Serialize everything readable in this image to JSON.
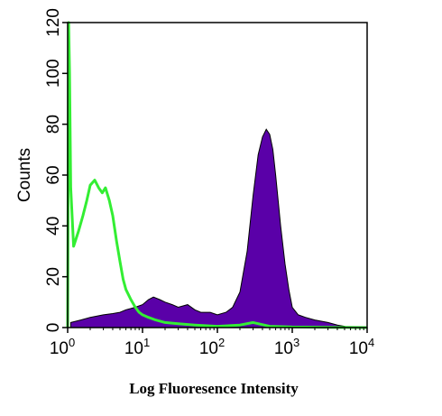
{
  "chart_data": {
    "type": "area",
    "title": "",
    "xlabel": "Log Fluoresence Intensity",
    "ylabel": "Counts",
    "xscale": "log",
    "xlim": [
      1,
      10000
    ],
    "ylim": [
      0,
      120
    ],
    "grid": false,
    "legend": "none",
    "xticks": [
      {
        "base": "10",
        "exp": "0",
        "value": 1
      },
      {
        "base": "10",
        "exp": "1",
        "value": 10
      },
      {
        "base": "10",
        "exp": "2",
        "value": 100
      },
      {
        "base": "10",
        "exp": "3",
        "value": 1000
      },
      {
        "base": "10",
        "exp": "4",
        "value": 10000
      }
    ],
    "yticks": [
      "0",
      "20",
      "40",
      "60",
      "80",
      "100",
      "120"
    ],
    "series": [
      {
        "style": "filled",
        "color": "#5a00a8",
        "x": [
          1.1,
          1.5,
          2,
          3,
          4,
          5,
          6,
          7,
          8,
          10,
          12,
          14,
          17,
          20,
          25,
          30,
          40,
          50,
          60,
          80,
          100,
          130,
          160,
          200,
          250,
          300,
          350,
          400,
          450,
          500,
          550,
          600,
          700,
          800,
          900,
          1000,
          1200,
          1500,
          2000,
          3000,
          4000,
          5000
        ],
        "y": [
          2,
          3,
          4,
          5,
          5.5,
          6,
          7,
          7.5,
          8,
          9,
          11,
          12,
          11,
          10,
          9,
          8,
          9,
          7,
          6,
          6,
          5,
          6,
          8,
          14,
          30,
          52,
          68,
          75,
          78,
          76,
          70,
          60,
          40,
          25,
          15,
          8,
          5,
          4,
          3,
          2,
          1,
          0.5
        ]
      },
      {
        "style": "line",
        "color": "#33ee33",
        "x": [
          1,
          1.03,
          1.06,
          1.1,
          1.2,
          1.4,
          1.6,
          1.8,
          2,
          2.3,
          2.6,
          2.9,
          3.2,
          3.6,
          4,
          4.5,
          5,
          5.5,
          6,
          7,
          8,
          9,
          10,
          12,
          15,
          20,
          30,
          50,
          100,
          200,
          300,
          500,
          1000,
          10000
        ],
        "y": [
          0,
          120,
          100,
          55,
          32,
          38,
          44,
          50,
          56,
          58,
          55,
          53,
          55,
          50,
          44,
          34,
          26,
          19,
          15,
          11,
          8,
          6,
          5,
          4,
          3,
          2,
          1.5,
          1,
          0.5,
          1,
          2,
          0.5,
          0.2,
          0
        ]
      }
    ]
  }
}
